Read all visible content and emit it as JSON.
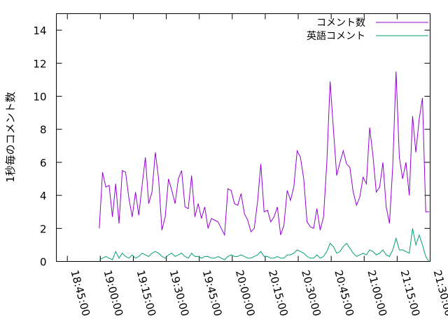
{
  "chart_data": {
    "type": "line",
    "ylabel": "1秒毎のコメント数",
    "xlabel": "",
    "title": "",
    "x_unit": "minutes of day",
    "xlim": [
      "18:40:00",
      "21:30:00"
    ],
    "ylim": [
      0,
      15
    ],
    "xticks": [
      "18:45:00",
      "19:00:00",
      "19:15:00",
      "19:30:00",
      "19:45:00",
      "20:00:00",
      "20:15:00",
      "20:30:00",
      "20:45:00",
      "21:00:00",
      "21:15:00",
      "21:30:00"
    ],
    "yticks": [
      "0",
      "2",
      "4",
      "6",
      "8",
      "10",
      "12",
      "14"
    ],
    "grid": false,
    "legend_position": "top-right",
    "colors": {
      "comments": "#9400d3",
      "english": "#009e73"
    },
    "x": [
      "18:59:30",
      "19:01:00",
      "19:02:30",
      "19:04:00",
      "19:05:30",
      "19:07:00",
      "19:08:30",
      "19:10:00",
      "19:11:30",
      "19:13:00",
      "19:14:30",
      "19:16:00",
      "19:17:30",
      "19:19:00",
      "19:20:30",
      "19:22:00",
      "19:23:30",
      "19:25:00",
      "19:26:30",
      "19:28:00",
      "19:29:30",
      "19:31:00",
      "19:32:30",
      "19:34:00",
      "19:35:30",
      "19:37:00",
      "19:38:30",
      "19:40:00",
      "19:41:30",
      "19:43:00",
      "19:44:30",
      "19:46:00",
      "19:47:30",
      "19:49:00",
      "19:50:30",
      "19:52:00",
      "19:53:30",
      "19:55:00",
      "19:56:30",
      "19:58:00",
      "19:59:30",
      "20:01:00",
      "20:02:30",
      "20:04:00",
      "20:05:30",
      "20:07:00",
      "20:08:30",
      "20:10:00",
      "20:11:30",
      "20:13:00",
      "20:14:30",
      "20:16:00",
      "20:17:30",
      "20:19:00",
      "20:20:30",
      "20:22:00",
      "20:23:30",
      "20:25:00",
      "20:26:30",
      "20:28:00",
      "20:29:30",
      "20:31:00",
      "20:32:30",
      "20:34:00",
      "20:35:30",
      "20:37:00",
      "20:38:30",
      "20:40:00",
      "20:41:30",
      "20:43:00",
      "20:44:30",
      "20:46:00",
      "20:47:30",
      "20:49:00",
      "20:50:30",
      "20:52:00",
      "20:53:30",
      "20:55:00",
      "20:56:30",
      "20:58:00",
      "20:59:30",
      "21:01:00",
      "21:02:30",
      "21:04:00",
      "21:05:30",
      "21:07:00",
      "21:08:30",
      "21:10:00",
      "21:11:30",
      "21:13:00",
      "21:14:30",
      "21:16:00",
      "21:17:30",
      "21:19:00",
      "21:20:30",
      "21:22:00",
      "21:23:30",
      "21:25:00",
      "21:26:30",
      "21:28:00",
      "21:29:30"
    ],
    "series": [
      {
        "name": "コメント数",
        "values": [
          2.0,
          5.4,
          4.5,
          4.6,
          2.7,
          4.7,
          2.3,
          5.5,
          5.4,
          3.8,
          2.7,
          4.2,
          2.8,
          4.6,
          6.3,
          3.5,
          4.2,
          6.6,
          5.0,
          1.9,
          2.7,
          5.0,
          4.3,
          3.5,
          5.0,
          5.5,
          3.3,
          3.2,
          5.2,
          2.7,
          3.5,
          2.6,
          3.3,
          2.0,
          2.6,
          2.5,
          2.4,
          2.0,
          1.6,
          4.4,
          4.3,
          3.5,
          3.4,
          4.1,
          2.9,
          2.5,
          1.8,
          2.0,
          3.6,
          5.9,
          3.0,
          3.1,
          2.4,
          2.7,
          3.3,
          1.6,
          2.2,
          4.3,
          3.7,
          4.5,
          6.7,
          6.3,
          5.0,
          2.4,
          2.1,
          2.0,
          3.2,
          1.9,
          2.7,
          6.0,
          10.9,
          8.0,
          5.2,
          6.0,
          6.7,
          5.9,
          5.7,
          4.2,
          3.4,
          3.9,
          5.1,
          4.7,
          8.1,
          6.4,
          4.2,
          4.5,
          6.0,
          3.3,
          2.3,
          5.8,
          11.5,
          6.3,
          5.0,
          6.0,
          4.0,
          8.8,
          6.6,
          8.6,
          9.9,
          3.0,
          3.0
        ]
      },
      {
        "name": "英語コメント",
        "values": [
          0.1,
          0.2,
          0.3,
          0.2,
          0.1,
          0.6,
          0.2,
          0.5,
          0.3,
          0.2,
          0.4,
          0.2,
          0.3,
          0.5,
          0.4,
          0.3,
          0.5,
          0.6,
          0.5,
          0.3,
          0.2,
          0.4,
          0.5,
          0.3,
          0.4,
          0.5,
          0.3,
          0.2,
          0.5,
          0.3,
          0.3,
          0.2,
          0.3,
          0.3,
          0.2,
          0.2,
          0.3,
          0.2,
          0.1,
          0.3,
          0.4,
          0.3,
          0.3,
          0.4,
          0.3,
          0.2,
          0.2,
          0.3,
          0.4,
          0.6,
          0.3,
          0.3,
          0.2,
          0.2,
          0.3,
          0.2,
          0.2,
          0.4,
          0.4,
          0.5,
          0.7,
          0.6,
          0.5,
          0.3,
          0.2,
          0.2,
          0.4,
          0.2,
          0.3,
          0.6,
          1.1,
          0.9,
          0.5,
          0.6,
          0.9,
          1.1,
          0.8,
          0.5,
          0.3,
          0.4,
          0.5,
          0.4,
          0.7,
          0.6,
          0.4,
          0.5,
          0.7,
          0.4,
          0.3,
          0.7,
          1.4,
          0.7,
          0.7,
          0.6,
          0.5,
          2.0,
          1.0,
          1.6,
          1.0,
          0.3,
          0.0
        ]
      }
    ]
  }
}
